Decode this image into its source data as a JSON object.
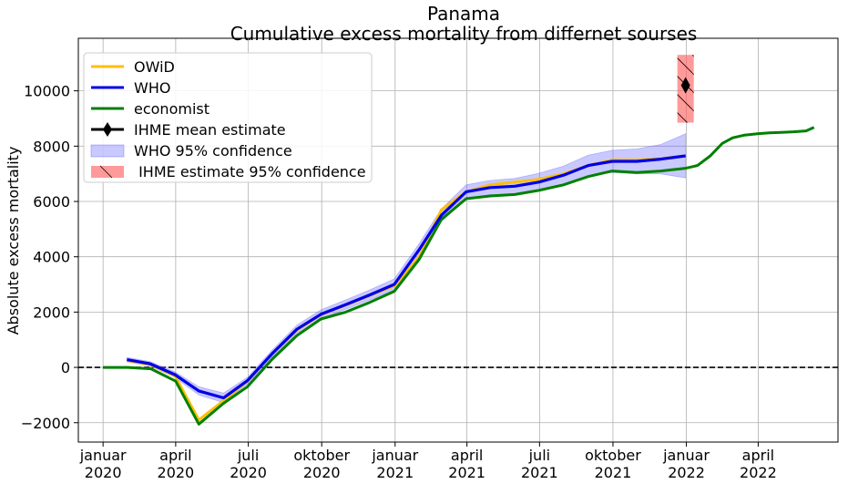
{
  "chart_data": {
    "type": "line",
    "title": "Panama",
    "subtitle": "Cumulative excess mortality from differnet sourses",
    "ylabel": "Absolute excess mortality",
    "xlabel": "",
    "ylim": [
      -2700,
      11900
    ],
    "xlim": [
      "2019-12-01",
      "2022-07-10"
    ],
    "grid": true,
    "legend_position": "top-left",
    "zero_line": {
      "y": 0,
      "style": "dashed",
      "color": "#000000"
    },
    "x_ticks": [
      {
        "date": "2020-01-01",
        "label": [
          "januar",
          "2020"
        ]
      },
      {
        "date": "2020-04-01",
        "label": [
          "april",
          "2020"
        ]
      },
      {
        "date": "2020-07-01",
        "label": [
          "juli",
          "2020"
        ]
      },
      {
        "date": "2020-10-01",
        "label": [
          "oktober",
          "2020"
        ]
      },
      {
        "date": "2021-01-01",
        "label": [
          "januar",
          "2021"
        ]
      },
      {
        "date": "2021-04-01",
        "label": [
          "april",
          "2021"
        ]
      },
      {
        "date": "2021-07-01",
        "label": [
          "juli",
          "2021"
        ]
      },
      {
        "date": "2021-10-01",
        "label": [
          "oktober",
          "2021"
        ]
      },
      {
        "date": "2022-01-01",
        "label": [
          "januar",
          "2022"
        ]
      },
      {
        "date": "2022-04-01",
        "label": [
          "april",
          "2022"
        ]
      }
    ],
    "y_ticks": [
      {
        "value": -2000,
        "label": "−2000"
      },
      {
        "value": 0,
        "label": "0"
      },
      {
        "value": 2000,
        "label": "2000"
      },
      {
        "value": 4000,
        "label": "4000"
      },
      {
        "value": 6000,
        "label": "6000"
      },
      {
        "value": 8000,
        "label": "8000"
      },
      {
        "value": 10000,
        "label": "10000"
      }
    ],
    "series": [
      {
        "name": "OWiD",
        "color": "#ffbf00",
        "x": [
          "2020-01-31",
          "2020-02-29",
          "2020-03-31",
          "2020-04-30",
          "2020-05-31",
          "2020-06-30",
          "2020-07-31",
          "2020-08-31",
          "2020-09-30",
          "2020-10-31",
          "2020-11-30",
          "2020-12-31",
          "2021-01-31",
          "2021-02-28",
          "2021-03-31",
          "2021-04-30",
          "2021-05-31",
          "2021-06-30",
          "2021-07-31",
          "2021-08-31",
          "2021-09-30",
          "2021-10-31",
          "2021-11-30",
          "2021-12-31"
        ],
        "y": [
          250,
          100,
          -300,
          -1900,
          -1200,
          -500,
          500,
          1350,
          1900,
          2250,
          2600,
          2950,
          4000,
          5700,
          6350,
          6600,
          6700,
          6800,
          7000,
          7300,
          7500,
          7500,
          7550,
          7650
        ]
      },
      {
        "name": "WHO",
        "color": "#0000e6",
        "x": [
          "2020-01-31",
          "2020-02-29",
          "2020-03-31",
          "2020-04-30",
          "2020-05-31",
          "2020-06-30",
          "2020-07-31",
          "2020-08-31",
          "2020-09-30",
          "2020-10-31",
          "2020-11-30",
          "2020-12-31",
          "2021-01-31",
          "2021-02-28",
          "2021-03-31",
          "2021-04-30",
          "2021-05-31",
          "2021-06-30",
          "2021-07-31",
          "2021-08-31",
          "2021-09-30",
          "2021-10-31",
          "2021-11-30",
          "2021-12-31"
        ],
        "y": [
          280,
          130,
          -260,
          -850,
          -1100,
          -480,
          500,
          1380,
          1920,
          2270,
          2620,
          3000,
          4250,
          5500,
          6350,
          6500,
          6550,
          6700,
          6950,
          7300,
          7450,
          7450,
          7530,
          7650
        ]
      },
      {
        "name": "economist",
        "color": "#008000",
        "x": [
          "2020-01-01",
          "2020-01-15",
          "2020-02-01",
          "2020-03-01",
          "2020-04-01",
          "2020-04-30",
          "2020-05-31",
          "2020-06-30",
          "2020-07-31",
          "2020-08-31",
          "2020-09-30",
          "2020-10-31",
          "2020-11-30",
          "2020-12-31",
          "2021-01-31",
          "2021-02-28",
          "2021-03-31",
          "2021-04-30",
          "2021-05-31",
          "2021-06-30",
          "2021-07-31",
          "2021-08-31",
          "2021-09-30",
          "2021-10-31",
          "2021-11-30",
          "2021-12-15",
          "2021-12-31",
          "2022-01-15",
          "2022-01-31",
          "2022-02-15",
          "2022-02-28",
          "2022-03-15",
          "2022-03-31",
          "2022-04-15",
          "2022-04-30",
          "2022-05-15",
          "2022-05-31",
          "2022-06-10"
        ],
        "y": [
          0,
          0,
          0,
          -50,
          -500,
          -2050,
          -1300,
          -700,
          300,
          1150,
          1750,
          2000,
          2350,
          2750,
          3900,
          5350,
          6100,
          6200,
          6250,
          6400,
          6600,
          6900,
          7100,
          7050,
          7100,
          7150,
          7200,
          7300,
          7650,
          8100,
          8300,
          8400,
          8450,
          8480,
          8500,
          8520,
          8550,
          8680
        ]
      }
    ],
    "who_confidence_band": {
      "name": "WHO 95% confidence",
      "color": "#6464ff",
      "opacity": 0.35,
      "x": [
        "2020-01-31",
        "2020-02-29",
        "2020-03-31",
        "2020-04-30",
        "2020-05-31",
        "2020-06-30",
        "2020-07-31",
        "2020-08-31",
        "2020-09-30",
        "2020-10-31",
        "2020-11-30",
        "2020-12-31",
        "2021-01-31",
        "2021-02-28",
        "2021-03-31",
        "2021-04-30",
        "2021-05-31",
        "2021-06-30",
        "2021-07-31",
        "2021-08-31",
        "2021-09-30",
        "2021-10-31",
        "2021-11-30",
        "2021-12-31"
      ],
      "lower": [
        200,
        50,
        -360,
        -1000,
        -1270,
        -600,
        370,
        1230,
        1760,
        2100,
        2440,
        2800,
        4030,
        5270,
        6100,
        6240,
        6270,
        6380,
        6620,
        6930,
        7050,
        7000,
        7000,
        6850
      ],
      "upper": [
        360,
        210,
        -160,
        -700,
        -930,
        -360,
        630,
        1530,
        2080,
        2440,
        2800,
        3200,
        4470,
        5730,
        6600,
        6760,
        6830,
        7020,
        7280,
        7670,
        7850,
        7900,
        8060,
        8450
      ]
    },
    "ihme": {
      "mean_name": "IHME mean estimate",
      "band_name": " IHME estimate 95% confidence",
      "date": "2021-12-31",
      "mean": 10200,
      "lower": 8850,
      "upper": 11300,
      "band_color": "#ff6464"
    }
  }
}
